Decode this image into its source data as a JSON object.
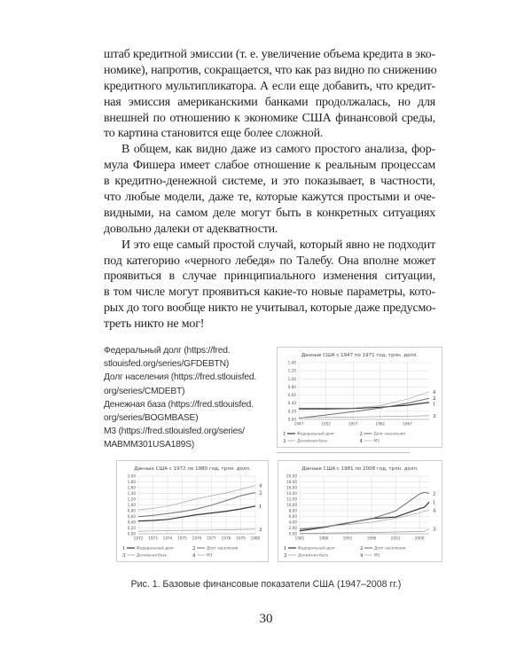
{
  "body_text": {
    "paragraphs": [
      {
        "indent": false,
        "lines": [
          "штаб кредитной эмиссии (т. е. увеличение объема кредита в эко-",
          "номике), напротив, сокращается, что как раз видно по снижению",
          "кредитного мультипликатора. А если еще добавить, что кредит-",
          "ная эмиссия американскими банками продолжалась, но для",
          "внешней по отношению к экономике США финансовой среды,",
          "то картина становится еще более сложной."
        ]
      },
      {
        "indent": true,
        "lines": [
          "В общем, как видно даже из самого простого анализа, фор-",
          "мула Фишера имеет слабое отношение к реальным процессам",
          "в кредитно-денежной системе, и это показывает, в частности,",
          "что любые модели, даже те, которые кажутся простыми и оче-",
          "видными, на самом деле могут быть в конкретных ситуациях",
          "довольно далеки от адекватности."
        ]
      },
      {
        "indent": true,
        "lines": [
          "И это еще самый простой случай, который явно не подходит",
          "под категорию «черного лебедя» по Талебу. Она вполне может",
          "проявиться в случае принципиального изменения ситуации,",
          "в том числе могут проявиться какие-то новые параметры, кото-",
          "рых до того вообще никто не учитывал, которые даже предусмо-",
          "треть никто не мог!"
        ]
      }
    ]
  },
  "sources": [
    "Федеральный долг (https://fred.",
    "stlouisfed.org/series/GFDEBTN)",
    "Долг населения (https://fred.stlouisfed.",
    "org/series/CMDEBT)",
    "Денежная база (https://fred.stlouisfed.",
    "org/series/BOGMBASE)",
    "М3 (https://fred.stlouisfed.org/series/",
    "MABMM301USA189S)"
  ],
  "chart_data": [
    {
      "type": "line",
      "title": "Данные США с 1947 по 1971 год, трлн. долл.",
      "x": [
        1947,
        1952,
        1957,
        1962,
        1967,
        1971
      ],
      "xticks": [
        "1947",
        "1952",
        "1957",
        "1962",
        "1967"
      ],
      "xlim": [
        1947,
        1971
      ],
      "ylim": [
        0,
        1.4
      ],
      "yticks": [
        "0,00",
        "0,20",
        "0,40",
        "0,60",
        "0,80",
        "1,00",
        "1,20",
        "1,40"
      ],
      "grid": true,
      "legend": "bottom",
      "series": [
        {
          "name": "Федеральный долг",
          "label": "1",
          "color": "#333333",
          "values": [
            0.26,
            0.26,
            0.27,
            0.3,
            0.35,
            0.42
          ]
        },
        {
          "name": "Долг населения",
          "label": "2",
          "color": "#6f6f6f",
          "values": [
            0.03,
            0.11,
            0.19,
            0.28,
            0.4,
            0.52
          ]
        },
        {
          "name": "Денежная база",
          "label": "3",
          "color": "#999999",
          "values": [
            0.04,
            0.05,
            0.06,
            0.07,
            0.08,
            0.09
          ]
        },
        {
          "name": "М3",
          "label": "4",
          "color": "#a8a8a8",
          "values": [
            0.28,
            0.28,
            0.28,
            0.34,
            0.5,
            0.68
          ]
        }
      ]
    },
    {
      "type": "line",
      "title": "Данные США с 1972 по 1980 год, трлн. долл.",
      "x": [
        1972,
        1973,
        1974,
        1975,
        1976,
        1977,
        1978,
        1979,
        1980
      ],
      "xticks": [
        "1972",
        "1973",
        "1974",
        "1975",
        "1976",
        "1977",
        "1978",
        "1979",
        "1980"
      ],
      "xlim": [
        1972,
        1980
      ],
      "ylim": [
        0,
        2.0
      ],
      "yticks": [
        "0,00",
        "0,20",
        "0,40",
        "0,60",
        "0,80",
        "1,00",
        "1,20",
        "1,40",
        "1,60",
        "1,80",
        "2,00"
      ],
      "grid": true,
      "legend": "bottom",
      "series": [
        {
          "name": "Федеральный долг",
          "label": "1",
          "color": "#333333",
          "values": [
            0.44,
            0.46,
            0.5,
            0.58,
            0.66,
            0.72,
            0.78,
            0.86,
            0.96
          ]
        },
        {
          "name": "Долг населения",
          "label": "2",
          "color": "#6f6f6f",
          "values": [
            0.59,
            0.64,
            0.7,
            0.77,
            0.86,
            0.99,
            1.15,
            1.32,
            1.43
          ]
        },
        {
          "name": "Денежная база",
          "label": "3",
          "color": "#999999",
          "values": [
            0.09,
            0.1,
            0.11,
            0.12,
            0.12,
            0.13,
            0.14,
            0.15,
            0.16
          ]
        },
        {
          "name": "М3",
          "label": "4",
          "color": "#a8a8a8",
          "values": [
            0.83,
            0.88,
            0.96,
            1.08,
            1.22,
            1.32,
            1.42,
            1.54,
            1.67
          ]
        }
      ]
    },
    {
      "type": "line",
      "title": "Данные США с 1981 по 2008 год, трлн. долл.",
      "x": [
        1981,
        1986,
        1991,
        1996,
        2001,
        2006,
        2007,
        2008
      ],
      "xticks": [
        "1981",
        "1986",
        "1991",
        "1996",
        "2001",
        "2006"
      ],
      "xlim": [
        1981,
        2008
      ],
      "ylim": [
        0,
        20
      ],
      "yticks": [
        "0,00",
        "2,00",
        "4,00",
        "6,00",
        "8,00",
        "10,00",
        "12,00",
        "14,00",
        "16,00",
        "18,00",
        "20,00"
      ],
      "grid": true,
      "legend": "bottom",
      "series": [
        {
          "name": "Федеральный долг",
          "label": "1",
          "color": "#333333",
          "values": [
            1.0,
            2.2,
            3.7,
            5.3,
            5.8,
            8.7,
            9.2,
            11.0
          ]
        },
        {
          "name": "Долг населения",
          "label": "2",
          "color": "#6f6f6f",
          "values": [
            1.5,
            2.4,
            3.8,
            5.2,
            7.9,
            13.8,
            14.4,
            14.0
          ]
        },
        {
          "name": "Денежная база",
          "label": "3",
          "color": "#999999",
          "values": [
            0.16,
            0.24,
            0.33,
            0.45,
            0.6,
            0.8,
            0.82,
            1.7
          ]
        },
        {
          "name": "М3",
          "label": "4",
          "color": "#a8a8a8",
          "values": [
            1.8,
            2.5,
            3.2,
            4.0,
            5.4,
            7.2,
            7.8,
            8.2
          ]
        }
      ]
    }
  ],
  "caption": "Рис. 1. Базовые финансовые показатели США (1947–2008 гг.)",
  "page_number": "30"
}
